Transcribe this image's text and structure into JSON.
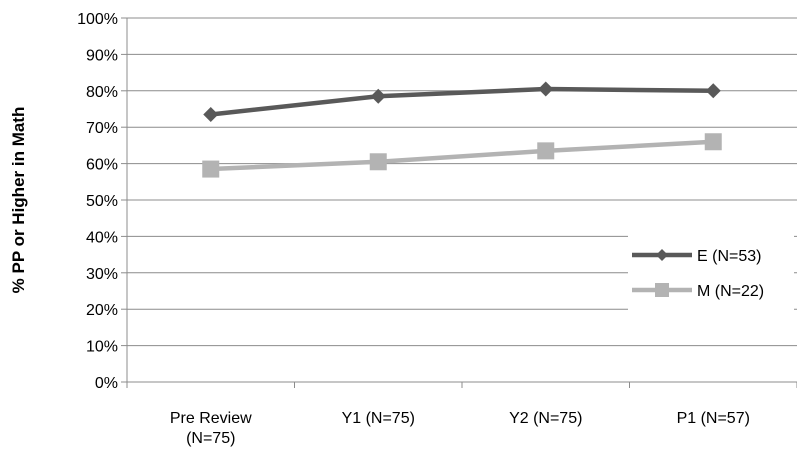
{
  "chart_data": {
    "type": "line",
    "categories": [
      [
        "Pre Review",
        "(N=75)"
      ],
      [
        "Y1 (N=75)"
      ],
      [
        "Y2 (N=75)"
      ],
      [
        "P1 (N=57)"
      ]
    ],
    "series": [
      {
        "name": "E (N=53)",
        "values": [
          73.5,
          78.5,
          80.5,
          80.0
        ],
        "color": "#595959",
        "marker": "diamond"
      },
      {
        "name": "M (N=22)",
        "values": [
          58.5,
          60.5,
          63.5,
          66.0
        ],
        "color": "#b3b3b3",
        "marker": "square"
      }
    ],
    "title": "",
    "xlabel": "",
    "ylabel": "% PP or Higher in Math",
    "ylim": [
      0,
      100
    ],
    "ytick_step": 10,
    "ytick_suffix": "%",
    "grid": true,
    "legend_position": "right"
  }
}
